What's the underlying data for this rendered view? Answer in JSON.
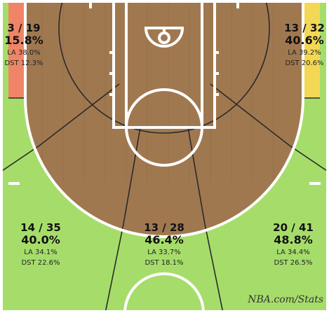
{
  "chart_data": {
    "type": "shot-zone-chart",
    "title": "",
    "credit": "NBA.com/Stats",
    "zones": [
      {
        "id": "left-corner-3",
        "made": 3,
        "attempts": 19,
        "made_attempts": "3 / 19",
        "pct": 15.8,
        "pct_label": "15.8%",
        "la_label": "LA 38.0%",
        "dst_label": "DST  12.3%",
        "color": "#ef8566"
      },
      {
        "id": "right-corner-3",
        "made": 13,
        "attempts": 32,
        "made_attempts": "13 / 32",
        "pct": 40.6,
        "pct_label": "40.6%",
        "la_label": "LA 39.2%",
        "dst_label": "DST  20.6%",
        "color": "#f3d855"
      },
      {
        "id": "left-wing-3",
        "made": 14,
        "attempts": 35,
        "made_attempts": "14 / 35",
        "pct": 40.0,
        "pct_label": "40.0%",
        "la_label": "LA 34.1%",
        "dst_label": "DST  22.6%",
        "color": "#a6dd6a"
      },
      {
        "id": "center-3",
        "made": 13,
        "attempts": 28,
        "made_attempts": "13 / 28",
        "pct": 46.4,
        "pct_label": "46.4%",
        "la_label": "LA 33.7%",
        "dst_label": "DST  18.1%",
        "color": "#a6dd6a"
      },
      {
        "id": "right-wing-3",
        "made": 20,
        "attempts": 41,
        "made_attempts": "20 / 41",
        "pct": 48.8,
        "pct_label": "48.8%",
        "la_label": "LA 34.4%",
        "dst_label": "DST  26.5%",
        "color": "#a6dd6a"
      }
    ],
    "colors": {
      "inside_arc": "#a07850",
      "court_lines": "#ffffff",
      "zone_lines": "#2a2a2a"
    }
  }
}
